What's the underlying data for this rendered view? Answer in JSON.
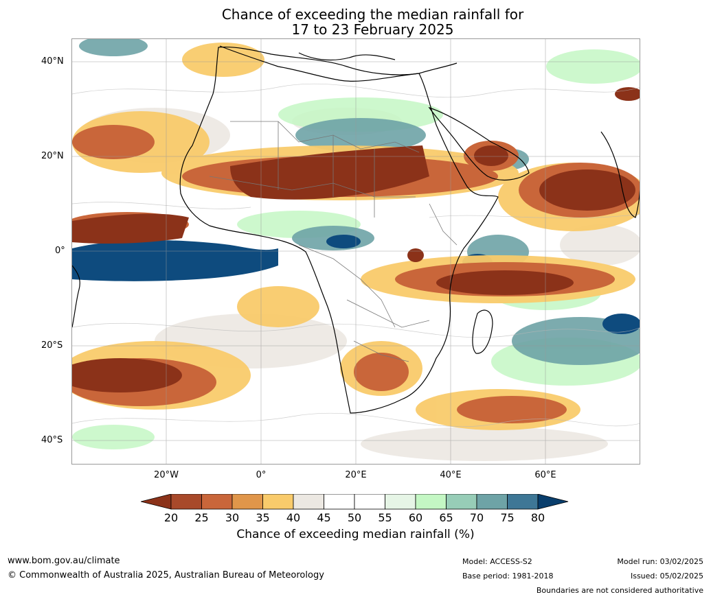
{
  "title": {
    "line1": "Chance of exceeding the median rainfall for",
    "line2": "17 to 23 February 2025"
  },
  "map": {
    "lat_labels": [
      "40°N",
      "20°N",
      "0°",
      "20°S",
      "40°S"
    ],
    "lon_labels": [
      "20°W",
      "0°",
      "20°E",
      "40°E",
      "60°E"
    ]
  },
  "colorbar": {
    "ticks": [
      "20",
      "25",
      "30",
      "35",
      "40",
      "45",
      "50",
      "55",
      "60",
      "65",
      "70",
      "75",
      "80"
    ],
    "colors": [
      "#8b3219",
      "#a8492a",
      "#c9663a",
      "#e0964a",
      "#f9cb6b",
      "#ece8e2",
      "#ffffff",
      "#ffffff",
      "#e6f5e6",
      "#c4f7c4",
      "#97cdb7",
      "#6ea3a6",
      "#3e7796",
      "#0e4b7e",
      "#093e6c"
    ],
    "title": "Chance of exceeding median rainfall (%)"
  },
  "footer": {
    "url": "www.bom.gov.au/climate",
    "copyright": "© Commonwealth of Australia 2025, Australian Bureau of Meteorology",
    "model": "Model: ACCESS-S2",
    "base_period": "Base period: 1981-2018",
    "model_run": "Model run: 03/02/2025",
    "issued": "Issued: 05/02/2025",
    "disclaimer": "Boundaries are not considered authoritative"
  }
}
